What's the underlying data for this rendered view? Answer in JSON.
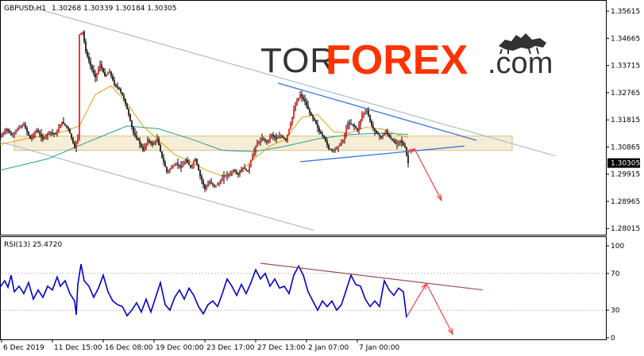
{
  "header": {
    "symbol_timeframe": "GBPUSD,H1",
    "ohlc": "1.30268 1.30339 1.30184 1.30305"
  },
  "watermark": {
    "part1": "TOR",
    "part2": "FOREX",
    "part3": ".com",
    "icon": "bull-bear-icon"
  },
  "rsi_label": "RSI(13) 25.4720",
  "colors": {
    "candles": "#000000",
    "bull_candle": "#ff0000",
    "ma_fast": "#e8a000",
    "ma_slow": "#20a090",
    "channel": "#a9bcd0",
    "trend_blue": "#3377dd",
    "zone_fill": "#f6edd7",
    "zone_stroke": "#e0c890",
    "rsi": "#0000cc",
    "rsi_trend": "#a05050",
    "arrow": "#ee4444",
    "brand": "#ff3300"
  },
  "chart_data": [
    {
      "type": "candlestick",
      "series": [
        {
          "name": "GBPUSD,H1"
        }
      ],
      "yticks": [
        "1.35615",
        "1.34665",
        "1.33715",
        "1.32765",
        "1.31815",
        "1.30865",
        "1.29915",
        "1.28965",
        "1.28015"
      ],
      "ylim": [
        1.278,
        1.3595
      ],
      "current_price": "1.30305",
      "xticks": [
        "6 Dec 2019",
        "11 Dec 15:00",
        "16 Dec 08:00",
        "19 Dec 00:00",
        "23 Dec 17:00",
        "27 Dec 13:00",
        "2 Jan 07:00",
        "7 Jan 00:00"
      ],
      "price_path": [
        [
          0,
          1.312
        ],
        [
          8,
          1.315
        ],
        [
          15,
          1.3125
        ],
        [
          22,
          1.315
        ],
        [
          30,
          1.3165
        ],
        [
          38,
          1.3115
        ],
        [
          46,
          1.3145
        ],
        [
          54,
          1.3115
        ],
        [
          62,
          1.314
        ],
        [
          70,
          1.313
        ],
        [
          78,
          1.3175
        ],
        [
          86,
          1.315
        ],
        [
          94,
          1.3085
        ],
        [
          98,
          1.312
        ],
        [
          100,
          1.348
        ],
        [
          104,
          1.349
        ],
        [
          108,
          1.342
        ],
        [
          114,
          1.337
        ],
        [
          120,
          1.333
        ],
        [
          126,
          1.3375
        ],
        [
          132,
          1.3335
        ],
        [
          138,
          1.335
        ],
        [
          144,
          1.3305
        ],
        [
          150,
          1.329
        ],
        [
          156,
          1.3255
        ],
        [
          162,
          1.32
        ],
        [
          168,
          1.3135
        ],
        [
          174,
          1.311
        ],
        [
          180,
          1.3075
        ],
        [
          186,
          1.311
        ],
        [
          192,
          1.3095
        ],
        [
          198,
          1.3115
        ],
        [
          204,
          1.305
        ],
        [
          210,
          1.3
        ],
        [
          216,
          1.3015
        ],
        [
          222,
          1.303
        ],
        [
          228,
          1.3015
        ],
        [
          234,
          1.304
        ],
        [
          240,
          1.3015
        ],
        [
          246,
          1.3045
        ],
        [
          252,
          1.2985
        ],
        [
          258,
          1.294
        ],
        [
          264,
          1.2965
        ],
        [
          270,
          1.295
        ],
        [
          276,
          1.296
        ],
        [
          282,
          1.2985
        ],
        [
          288,
          1.299
        ],
        [
          294,
          1.3005
        ],
        [
          300,
          1.299
        ],
        [
          306,
          1.3015
        ],
        [
          312,
          1.3
        ],
        [
          318,
          1.306
        ],
        [
          324,
          1.31
        ],
        [
          330,
          1.3115
        ],
        [
          336,
          1.3105
        ],
        [
          342,
          1.313
        ],
        [
          348,
          1.3115
        ],
        [
          354,
          1.3125
        ],
        [
          360,
          1.311
        ],
        [
          366,
          1.317
        ],
        [
          372,
          1.3235
        ],
        [
          378,
          1.327
        ],
        [
          384,
          1.3245
        ],
        [
          390,
          1.3205
        ],
        [
          396,
          1.318
        ],
        [
          402,
          1.314
        ],
        [
          408,
          1.312
        ],
        [
          414,
          1.308
        ],
        [
          420,
          1.3075
        ],
        [
          426,
          1.309
        ],
        [
          432,
          1.311
        ],
        [
          438,
          1.317
        ],
        [
          444,
          1.3165
        ],
        [
          450,
          1.3145
        ],
        [
          456,
          1.32
        ],
        [
          462,
          1.3215
        ],
        [
          468,
          1.316
        ],
        [
          474,
          1.3135
        ],
        [
          480,
          1.312
        ],
        [
          486,
          1.314
        ],
        [
          492,
          1.3115
        ],
        [
          498,
          1.31
        ],
        [
          504,
          1.311
        ],
        [
          510,
          1.3085
        ],
        [
          514,
          1.303
        ]
      ],
      "ma_fast_path": [
        [
          0,
          1.3095
        ],
        [
          40,
          1.312
        ],
        [
          80,
          1.314
        ],
        [
          100,
          1.316
        ],
        [
          120,
          1.327
        ],
        [
          140,
          1.33
        ],
        [
          160,
          1.324
        ],
        [
          180,
          1.316
        ],
        [
          200,
          1.311
        ],
        [
          220,
          1.306
        ],
        [
          240,
          1.3035
        ],
        [
          260,
          1.3005
        ],
        [
          280,
          1.2985
        ],
        [
          300,
          1.2995
        ],
        [
          320,
          1.3045
        ],
        [
          340,
          1.309
        ],
        [
          360,
          1.3115
        ],
        [
          380,
          1.319
        ],
        [
          400,
          1.32
        ],
        [
          420,
          1.314
        ],
        [
          440,
          1.3135
        ],
        [
          460,
          1.3155
        ],
        [
          480,
          1.315
        ],
        [
          500,
          1.313
        ],
        [
          514,
          1.312
        ]
      ],
      "ma_slow_path": [
        [
          0,
          1.3005
        ],
        [
          60,
          1.3045
        ],
        [
          120,
          1.3115
        ],
        [
          160,
          1.316
        ],
        [
          200,
          1.315
        ],
        [
          240,
          1.3115
        ],
        [
          280,
          1.3075
        ],
        [
          320,
          1.307
        ],
        [
          360,
          1.309
        ],
        [
          400,
          1.3115
        ],
        [
          440,
          1.313
        ],
        [
          480,
          1.3135
        ],
        [
          514,
          1.313
        ]
      ],
      "channel_upper": [
        [
          34,
          1.358
        ],
        [
          700,
          1.3055
        ]
      ],
      "channel_lower": [
        [
          0,
          1.3105
        ],
        [
          395,
          1.2795
        ]
      ],
      "trend_upper": [
        [
          350,
          1.331
        ],
        [
          600,
          1.311
        ]
      ],
      "trend_lower": [
        [
          378,
          1.3035
        ],
        [
          585,
          1.309
        ]
      ],
      "zone": {
        "x_from": 18,
        "x_to": 645,
        "y_from": 1.3075,
        "y_to": 1.3125
      },
      "forecast": [
        [
          513,
          1.3065
        ],
        [
          522,
          1.308
        ],
        [
          556,
          1.29
        ]
      ]
    },
    {
      "type": "line",
      "series": [
        {
          "name": "RSI(13)"
        }
      ],
      "yticks": [
        "100",
        "70",
        "30",
        "0"
      ],
      "ylim": [
        0,
        100
      ],
      "levels": [
        70,
        30
      ],
      "rsi_path": [
        [
          0,
          55
        ],
        [
          6,
          62
        ],
        [
          10,
          55
        ],
        [
          14,
          68
        ],
        [
          18,
          50
        ],
        [
          24,
          56
        ],
        [
          30,
          48
        ],
        [
          36,
          60
        ],
        [
          42,
          42
        ],
        [
          48,
          52
        ],
        [
          54,
          44
        ],
        [
          60,
          56
        ],
        [
          66,
          52
        ],
        [
          72,
          66
        ],
        [
          76,
          56
        ],
        [
          82,
          62
        ],
        [
          88,
          48
        ],
        [
          94,
          40
        ],
        [
          96,
          25
        ],
        [
          98,
          58
        ],
        [
          102,
          80
        ],
        [
          106,
          62
        ],
        [
          112,
          56
        ],
        [
          118,
          44
        ],
        [
          124,
          54
        ],
        [
          130,
          68
        ],
        [
          136,
          50
        ],
        [
          142,
          40
        ],
        [
          148,
          36
        ],
        [
          154,
          34
        ],
        [
          160,
          24
        ],
        [
          166,
          30
        ],
        [
          172,
          38
        ],
        [
          178,
          28
        ],
        [
          184,
          42
        ],
        [
          190,
          28
        ],
        [
          196,
          44
        ],
        [
          202,
          60
        ],
        [
          208,
          36
        ],
        [
          214,
          30
        ],
        [
          220,
          44
        ],
        [
          226,
          52
        ],
        [
          232,
          42
        ],
        [
          238,
          54
        ],
        [
          244,
          46
        ],
        [
          250,
          34
        ],
        [
          256,
          26
        ],
        [
          262,
          36
        ],
        [
          268,
          40
        ],
        [
          274,
          34
        ],
        [
          280,
          48
        ],
        [
          286,
          64
        ],
        [
          292,
          56
        ],
        [
          298,
          46
        ],
        [
          304,
          58
        ],
        [
          310,
          48
        ],
        [
          316,
          60
        ],
        [
          322,
          74
        ],
        [
          328,
          64
        ],
        [
          334,
          70
        ],
        [
          340,
          56
        ],
        [
          346,
          64
        ],
        [
          352,
          54
        ],
        [
          358,
          56
        ],
        [
          364,
          48
        ],
        [
          370,
          68
        ],
        [
          376,
          78
        ],
        [
          382,
          68
        ],
        [
          388,
          50
        ],
        [
          394,
          40
        ],
        [
          400,
          30
        ],
        [
          406,
          40
        ],
        [
          412,
          34
        ],
        [
          418,
          40
        ],
        [
          424,
          30
        ],
        [
          430,
          36
        ],
        [
          436,
          52
        ],
        [
          442,
          68
        ],
        [
          448,
          58
        ],
        [
          454,
          56
        ],
        [
          460,
          42
        ],
        [
          466,
          34
        ],
        [
          472,
          40
        ],
        [
          478,
          34
        ],
        [
          484,
          62
        ],
        [
          490,
          52
        ],
        [
          496,
          46
        ],
        [
          502,
          54
        ],
        [
          508,
          50
        ],
        [
          512,
          22
        ]
      ],
      "rsi_trend": [
        [
          328,
          81
        ],
        [
          608,
          52
        ]
      ],
      "forecast": [
        [
          513,
          24
        ],
        [
          537,
          59
        ],
        [
          570,
          4
        ]
      ]
    }
  ]
}
